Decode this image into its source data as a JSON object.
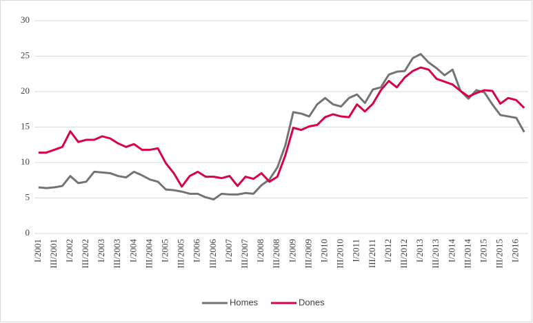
{
  "chart_data": {
    "type": "line",
    "categories": [
      "I/2001",
      null,
      "III/2001",
      null,
      "I/2002",
      null,
      "III/2002",
      null,
      "I/2003",
      null,
      "III/2003",
      null,
      "I/2004",
      null,
      "III/2004",
      null,
      "I/2005",
      null,
      "III/2005",
      null,
      "I/2006",
      null,
      "III/2006",
      null,
      "I/2007",
      null,
      "III/2007",
      null,
      "I/2008",
      null,
      "III/2008",
      null,
      "I/2009",
      null,
      "III/2009",
      null,
      "I/2010",
      null,
      "III/2010",
      null,
      "I/2011",
      null,
      "III/2011",
      null,
      "I/2012",
      null,
      "III/2012",
      null,
      "I/2013",
      null,
      "III/2013",
      null,
      "I/2014",
      null,
      "III/2014",
      null,
      "I/2015",
      null,
      "III/2015",
      null,
      "I/2016",
      null
    ],
    "series": [
      {
        "name": "Homes",
        "color": "#737373",
        "values": [
          6.5,
          6.4,
          6.5,
          6.7,
          8.1,
          7.1,
          7.3,
          8.7,
          8.6,
          8.5,
          8.1,
          7.9,
          8.7,
          8.2,
          7.6,
          7.3,
          6.2,
          6.1,
          5.9,
          5.6,
          5.6,
          5.1,
          4.8,
          5.6,
          5.5,
          5.5,
          5.7,
          5.6,
          6.8,
          7.6,
          9.3,
          12.4,
          17.1,
          16.9,
          16.5,
          18.2,
          19.1,
          18.2,
          17.9,
          19.1,
          19.6,
          18.4,
          20.3,
          20.6,
          22.4,
          22.8,
          22.9,
          24.7,
          25.3,
          24.1,
          23.3,
          22.3,
          23.1,
          20.1,
          19.0,
          20.2,
          19.9,
          18.2,
          16.7,
          16.5,
          16.3,
          14.3
        ]
      },
      {
        "name": "Dones",
        "color": "#d9004c",
        "values": [
          11.4,
          11.4,
          11.8,
          12.2,
          14.4,
          12.9,
          13.2,
          13.2,
          13.7,
          13.4,
          12.7,
          12.2,
          12.6,
          11.8,
          11.8,
          12.0,
          9.9,
          8.5,
          6.6,
          8.1,
          8.7,
          8.0,
          8.0,
          7.8,
          8.1,
          6.7,
          8.0,
          7.7,
          8.5,
          7.3,
          8.0,
          11.0,
          14.9,
          14.6,
          15.1,
          15.3,
          16.4,
          16.8,
          16.5,
          16.4,
          18.2,
          17.2,
          18.3,
          20.2,
          21.5,
          20.6,
          22.0,
          22.9,
          23.4,
          23.1,
          21.8,
          21.4,
          21.0,
          20.1,
          19.3,
          19.8,
          20.2,
          20.1,
          18.3,
          19.1,
          18.8,
          17.7
        ]
      }
    ],
    "ylim": [
      0,
      30
    ],
    "yticks": [
      0,
      5,
      10,
      15,
      20,
      25,
      30
    ],
    "grid": true
  }
}
